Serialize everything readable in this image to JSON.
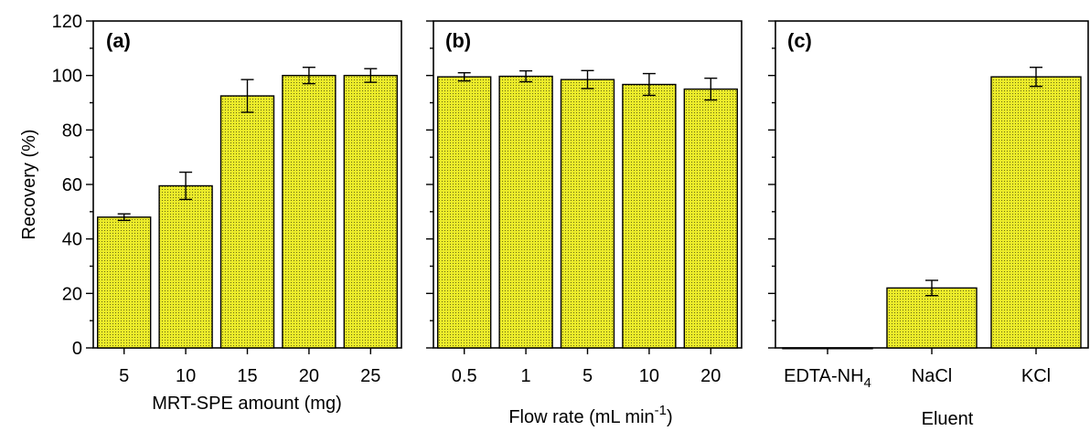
{
  "chart_data": [
    {
      "type": "bar",
      "panel_label": "(a)",
      "categories": [
        "5",
        "10",
        "15",
        "20",
        "25"
      ],
      "values": [
        48,
        59.5,
        92.5,
        100,
        100
      ],
      "errors": [
        1.2,
        5,
        6,
        3,
        2.5
      ],
      "xlabel": "MRT-SPE amount (mg)",
      "ylabel": "Recovery (%)",
      "ylim": [
        0,
        120
      ],
      "yticks": [
        "0",
        "20",
        "40",
        "60",
        "80",
        "100",
        "120"
      ],
      "bar_color": "#ecec2a"
    },
    {
      "type": "bar",
      "panel_label": "(b)",
      "categories": [
        "0.5",
        "1",
        "5",
        "10",
        "20"
      ],
      "values": [
        99.5,
        99.7,
        98.5,
        96.7,
        95
      ],
      "errors": [
        1.5,
        2,
        3.3,
        4,
        4
      ],
      "xlabel": "Flow rate (mL min",
      "xlabel_sup": "-1",
      "xlabel_end": ")",
      "ylim": [
        0,
        120
      ],
      "bar_color": "#ecec2a"
    },
    {
      "type": "bar",
      "panel_label": "(c)",
      "categories": [
        "EDTA-NH",
        "NaCl",
        "KCl"
      ],
      "category_subscripts": [
        "4",
        "",
        ""
      ],
      "values": [
        0,
        22,
        99.5
      ],
      "errors": [
        0,
        2.8,
        3.5
      ],
      "xlabel": "Eluent",
      "ylim": [
        0,
        120
      ],
      "bar_color": "#ecec2a"
    }
  ]
}
